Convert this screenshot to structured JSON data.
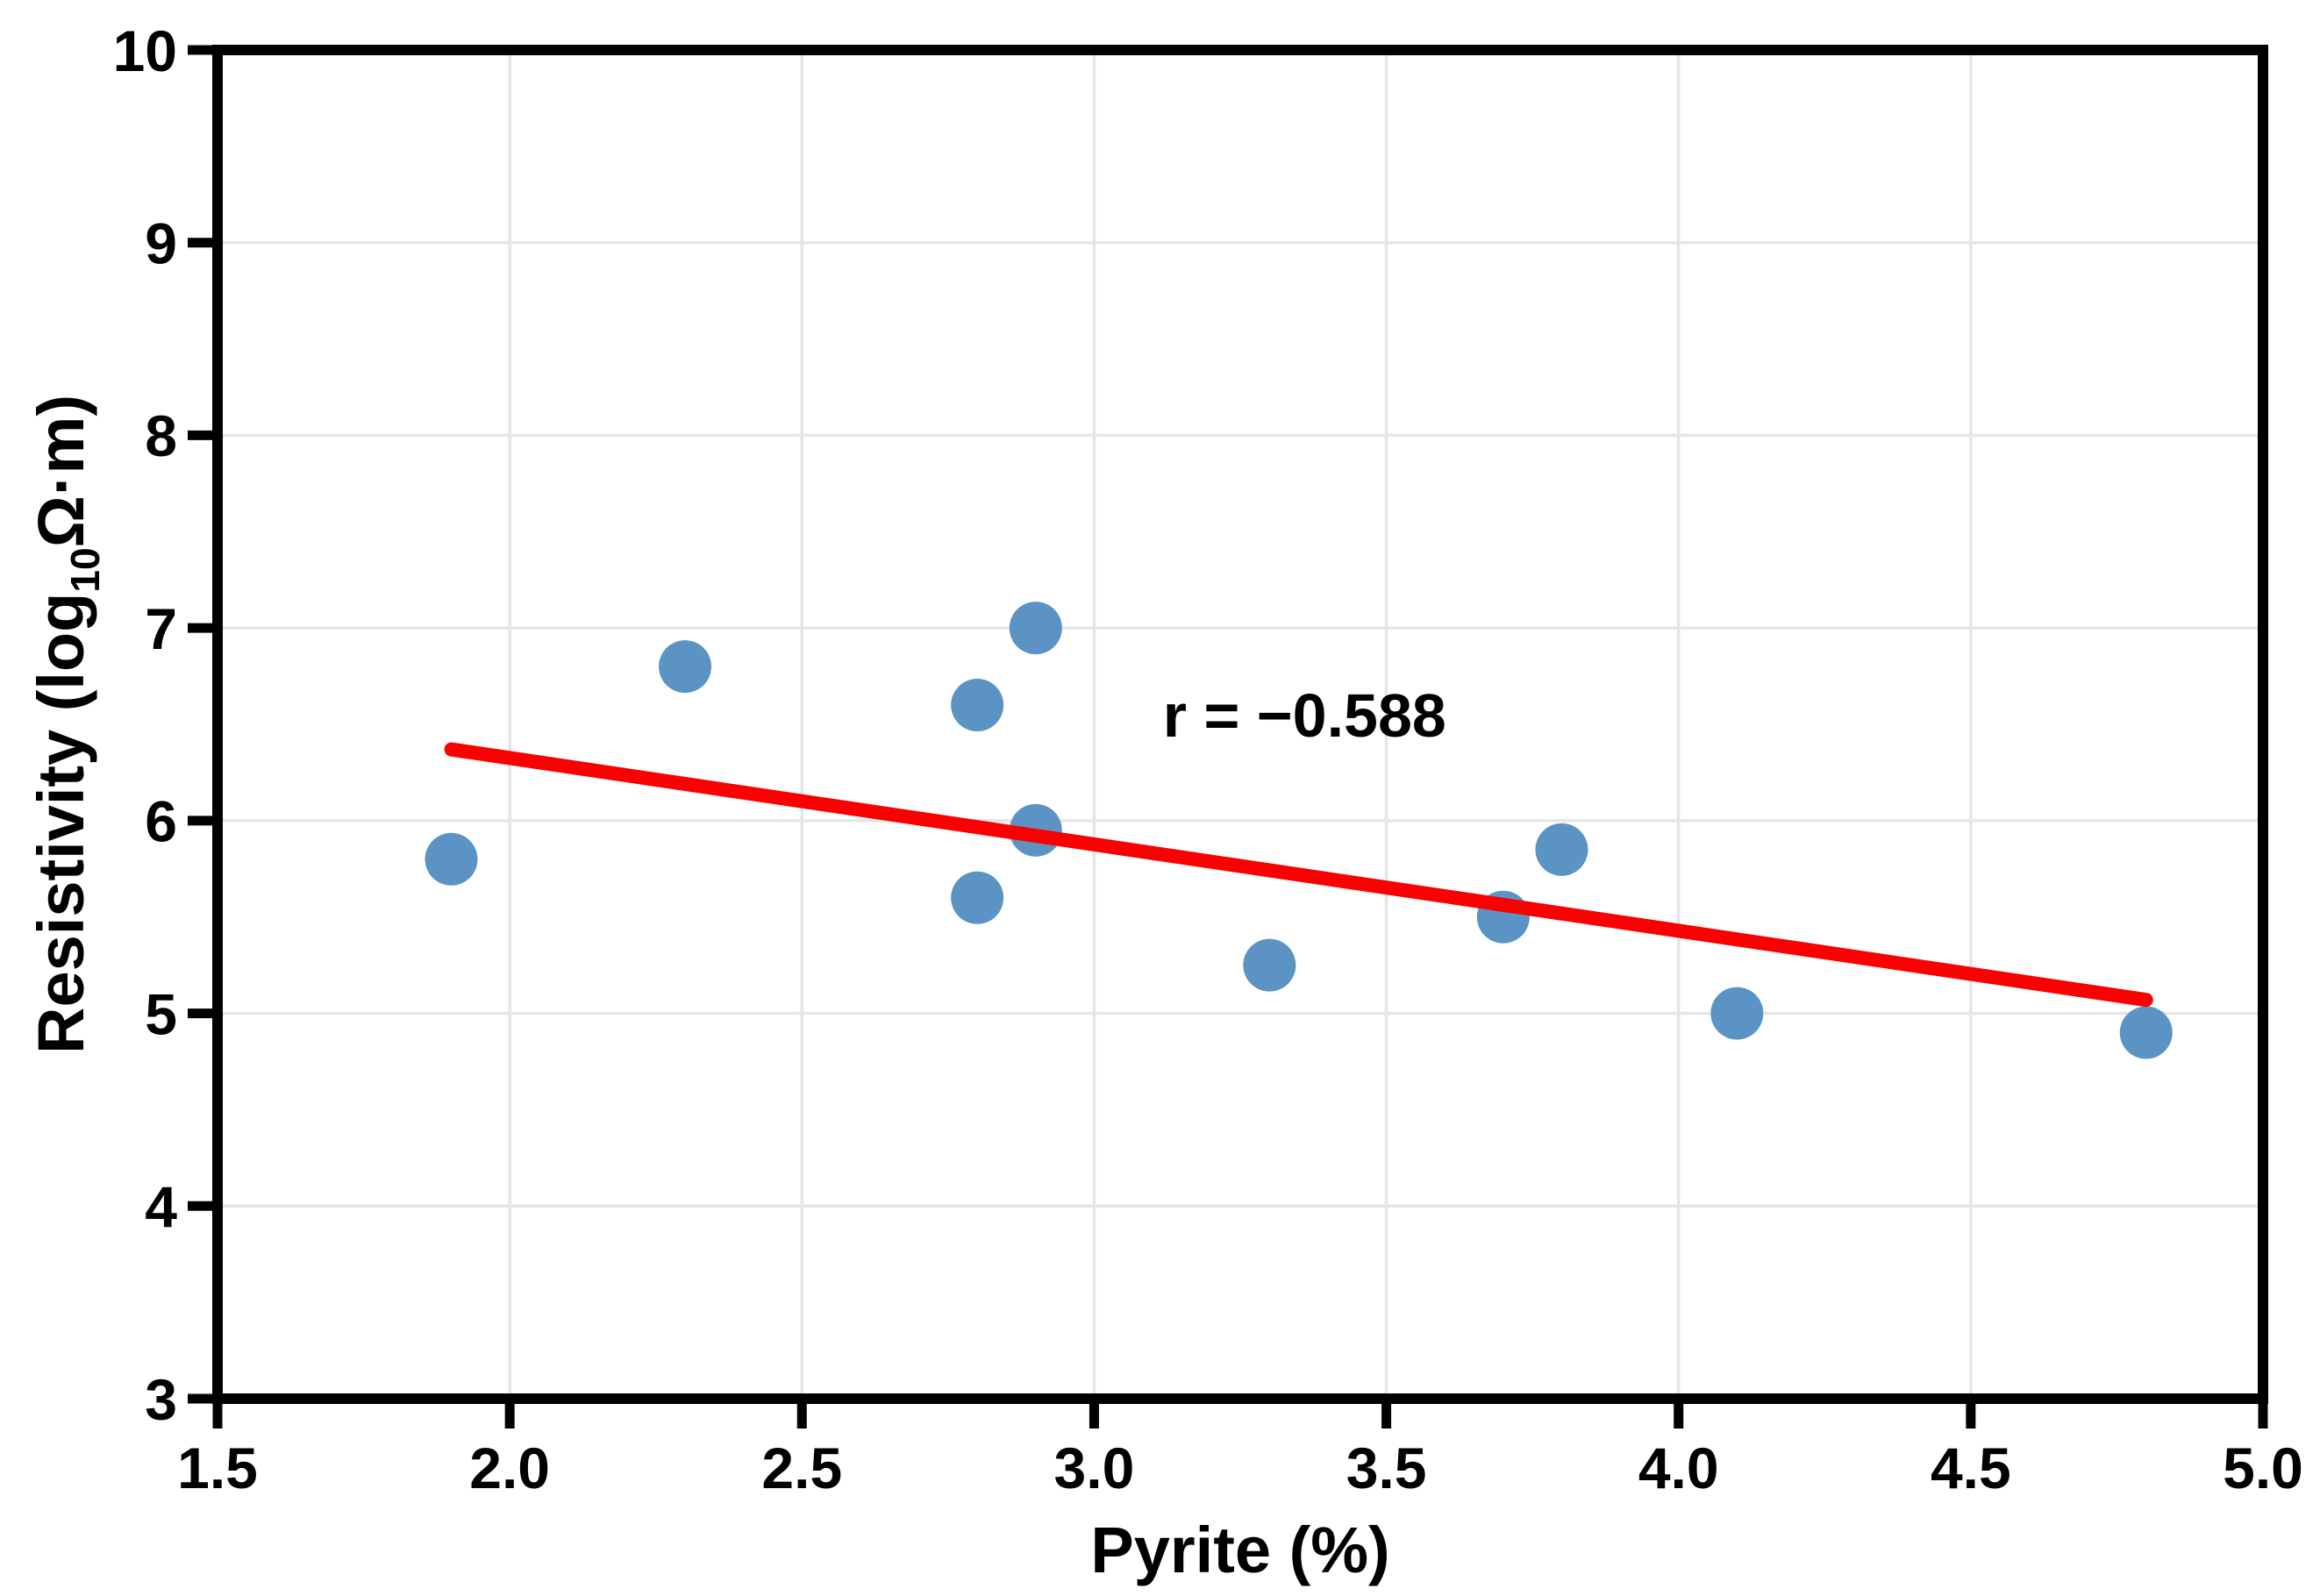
{
  "figure": {
    "background": "#ffffff"
  },
  "chart_data": {
    "type": "scatter",
    "title": "",
    "xlabel": "Pyrite (%)",
    "ylabel": "Resistivity (log10Ω·m)",
    "ylabel_parts": {
      "prefix": "Resistivity (log",
      "subscript": "10",
      "suffix": "Ω·m)"
    },
    "xlim": [
      1.5,
      5.0
    ],
    "ylim": [
      3,
      10
    ],
    "xticks": [
      1.5,
      2.0,
      2.5,
      3.0,
      3.5,
      4.0,
      4.5,
      5.0
    ],
    "xtick_labels": [
      "1.5",
      "2.0",
      "2.5",
      "3.0",
      "3.5",
      "4.0",
      "4.5",
      "5.0"
    ],
    "yticks": [
      3,
      4,
      5,
      6,
      7,
      8,
      9,
      10
    ],
    "ytick_labels": [
      "3",
      "4",
      "5",
      "6",
      "7",
      "8",
      "9",
      "10"
    ],
    "grid": true,
    "legend": false,
    "series": [
      {
        "name": "samples",
        "marker": "circle",
        "color": "#5B94C4",
        "points": [
          {
            "x": 1.9,
            "y": 5.8
          },
          {
            "x": 2.3,
            "y": 6.8
          },
          {
            "x": 2.8,
            "y": 6.6
          },
          {
            "x": 2.9,
            "y": 7.0
          },
          {
            "x": 2.8,
            "y": 5.6
          },
          {
            "x": 2.9,
            "y": 5.95
          },
          {
            "x": 3.3,
            "y": 5.25
          },
          {
            "x": 3.7,
            "y": 5.5
          },
          {
            "x": 3.8,
            "y": 5.85
          },
          {
            "x": 4.1,
            "y": 5.0
          },
          {
            "x": 4.8,
            "y": 4.9
          }
        ]
      }
    ],
    "trend_line": {
      "color": "#fb0000",
      "x1": 1.9,
      "y1": 6.37,
      "x2": 4.8,
      "y2": 5.07
    },
    "annotation": {
      "text": "r = −0.588",
      "x": 3.36,
      "y": 6.55,
      "color": "#000000"
    },
    "colors": {
      "grid": "#e6e6e6",
      "axis": "#000000",
      "tick_label": "#000000",
      "plot_background": "#ffffff"
    }
  }
}
